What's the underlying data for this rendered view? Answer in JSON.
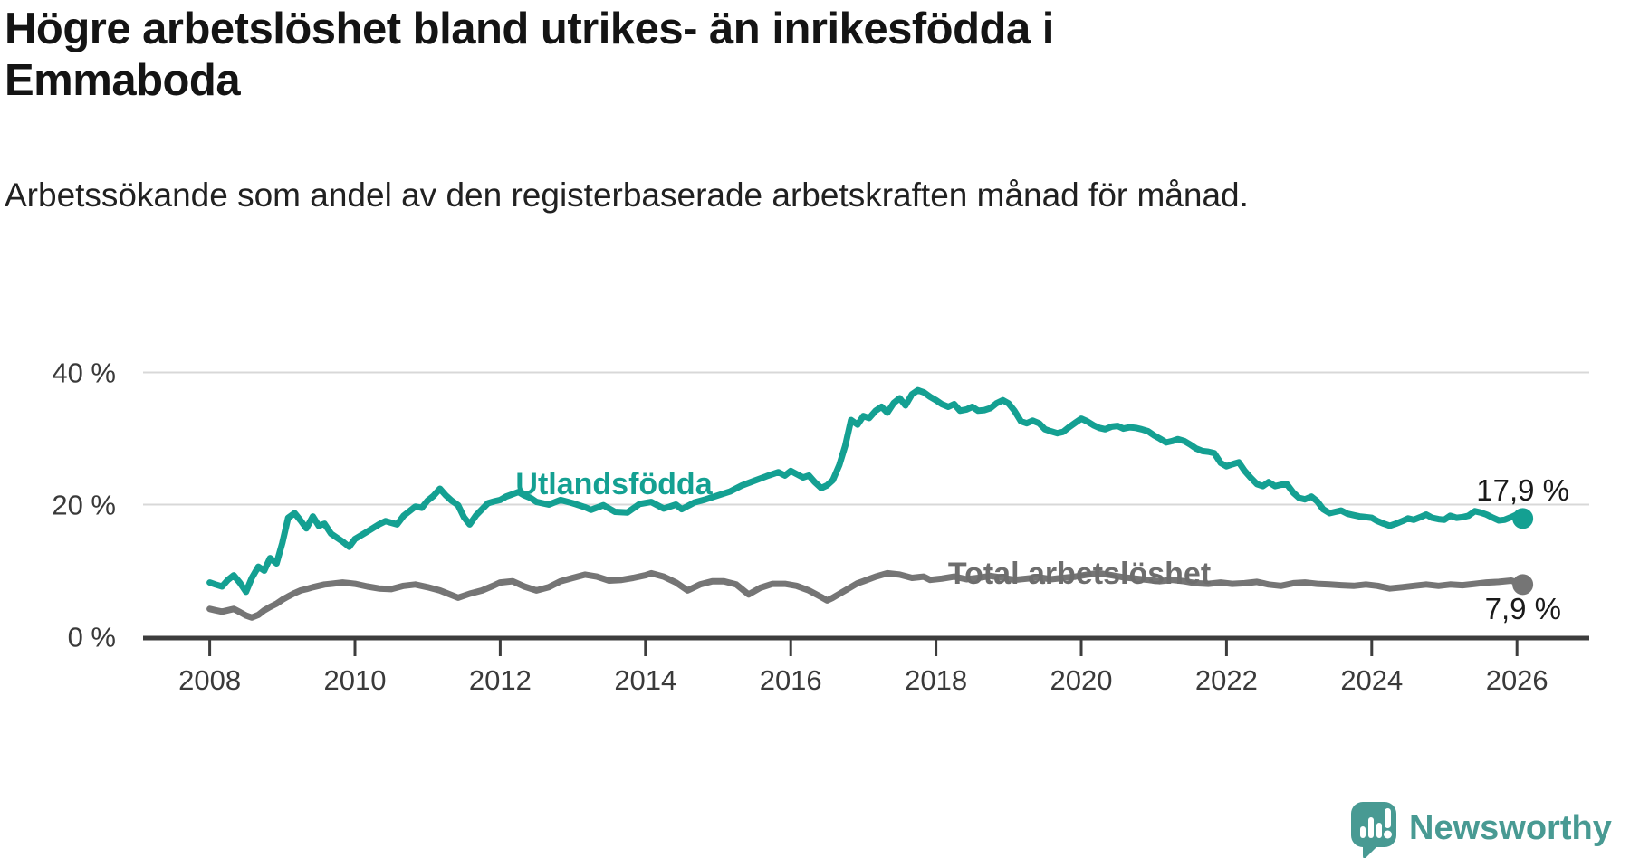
{
  "header": {
    "title_lines": [
      "Högre arbetslöshet bland utrikes- än inrikesfödda i",
      "Emmaboda"
    ],
    "subtitle": "Arbetssökande som andel av den registerbaserade arbetskraften månad för månad."
  },
  "colors": {
    "foreign_line": "#14a092",
    "total_line": "#757575",
    "total_label": "#6d6d6d",
    "grid": "#d8d8d8",
    "axis": "#3d3d3d",
    "tick_text": "#3a3a3a",
    "value_text": "#1a1a1a",
    "brand": "#489a93"
  },
  "branding": {
    "name": "Newsworthy",
    "logo_icon": "speech-bubble-bar-chart-exclamation"
  },
  "chart_data": {
    "type": "line",
    "title": "Högre arbetslöshet bland utrikes- än inrikesfödda i Emmaboda",
    "subtitle": "Arbetssökande som andel av den registerbaserade arbetskraften månad för månad.",
    "xlabel": "",
    "ylabel": "",
    "x_axis": {
      "ticks": [
        2008,
        2010,
        2012,
        2014,
        2016,
        2018,
        2020,
        2022,
        2024,
        2026
      ],
      "range": [
        2007.1,
        2027.0
      ]
    },
    "y_axis": {
      "ticks": [
        {
          "value": 0,
          "label": "0 %"
        },
        {
          "value": 20,
          "label": "20 %"
        },
        {
          "value": 40,
          "label": "40 %"
        }
      ],
      "range": [
        0,
        44
      ],
      "grid": true
    },
    "legend_position": "inline-labels",
    "series": [
      {
        "name": "Utlandsfödda",
        "end_label": "17,9 %",
        "end_value": 17.9,
        "x": [
          2008.0,
          2008.08,
          2008.17,
          2008.25,
          2008.33,
          2008.42,
          2008.5,
          2008.58,
          2008.67,
          2008.75,
          2008.83,
          2008.92,
          2009.0,
          2009.08,
          2009.17,
          2009.25,
          2009.33,
          2009.42,
          2009.5,
          2009.58,
          2009.67,
          2009.75,
          2009.83,
          2009.92,
          2010.0,
          2010.17,
          2010.33,
          2010.42,
          2010.58,
          2010.67,
          2010.83,
          2010.92,
          2011.0,
          2011.08,
          2011.17,
          2011.25,
          2011.33,
          2011.42,
          2011.5,
          2011.58,
          2011.67,
          2011.83,
          2011.92,
          2012.0,
          2012.08,
          2012.25,
          2012.33,
          2012.42,
          2012.5,
          2012.67,
          2012.83,
          2013.0,
          2013.17,
          2013.25,
          2013.42,
          2013.58,
          2013.75,
          2013.92,
          2014.08,
          2014.25,
          2014.42,
          2014.5,
          2014.67,
          2014.83,
          2015.0,
          2015.17,
          2015.33,
          2015.5,
          2015.67,
          2015.83,
          2015.92,
          2016.0,
          2016.17,
          2016.25,
          2016.33,
          2016.42,
          2016.5,
          2016.58,
          2016.67,
          2016.75,
          2016.83,
          2016.92,
          2017.0,
          2017.08,
          2017.17,
          2017.25,
          2017.33,
          2017.42,
          2017.5,
          2017.58,
          2017.67,
          2017.75,
          2017.83,
          2017.92,
          2018.0,
          2018.08,
          2018.17,
          2018.25,
          2018.33,
          2018.42,
          2018.5,
          2018.58,
          2018.67,
          2018.75,
          2018.83,
          2018.92,
          2019.0,
          2019.08,
          2019.17,
          2019.25,
          2019.33,
          2019.42,
          2019.5,
          2019.58,
          2019.67,
          2019.75,
          2019.83,
          2019.92,
          2020.0,
          2020.08,
          2020.17,
          2020.25,
          2020.33,
          2020.42,
          2020.5,
          2020.58,
          2020.67,
          2020.75,
          2020.83,
          2020.92,
          2021.0,
          2021.08,
          2021.17,
          2021.25,
          2021.33,
          2021.42,
          2021.5,
          2021.58,
          2021.67,
          2021.75,
          2021.83,
          2021.92,
          2022.0,
          2022.08,
          2022.17,
          2022.25,
          2022.33,
          2022.42,
          2022.5,
          2022.58,
          2022.67,
          2022.75,
          2022.83,
          2022.92,
          2023.0,
          2023.08,
          2023.17,
          2023.25,
          2023.33,
          2023.42,
          2023.5,
          2023.58,
          2023.67,
          2023.75,
          2023.83,
          2023.92,
          2024.0,
          2024.08,
          2024.17,
          2024.25,
          2024.33,
          2024.42,
          2024.5,
          2024.58,
          2024.67,
          2024.75,
          2024.83,
          2024.92,
          2025.0,
          2025.08,
          2025.17,
          2025.25,
          2025.33,
          2025.42,
          2025.5,
          2025.58,
          2025.67,
          2025.75,
          2025.83,
          2025.92,
          2026.0,
          2026.08
        ],
        "values": [
          8.2,
          7.9,
          7.6,
          8.6,
          9.3,
          8.1,
          6.8,
          8.9,
          10.6,
          10.0,
          11.9,
          11.1,
          14.2,
          18.0,
          18.7,
          17.6,
          16.4,
          18.2,
          16.8,
          17.1,
          15.6,
          15.0,
          14.4,
          13.6,
          14.8,
          15.9,
          17.0,
          17.5,
          17.0,
          18.3,
          19.7,
          19.5,
          20.6,
          21.3,
          22.4,
          21.4,
          20.6,
          19.9,
          18.1,
          17.0,
          18.4,
          20.2,
          20.5,
          20.7,
          21.2,
          21.9,
          21.4,
          21.0,
          20.4,
          20.0,
          20.7,
          20.2,
          19.6,
          19.2,
          19.9,
          18.9,
          18.8,
          20.1,
          20.4,
          19.4,
          20.0,
          19.3,
          20.3,
          20.8,
          21.4,
          22.0,
          22.9,
          23.6,
          24.3,
          24.9,
          24.4,
          25.1,
          24.1,
          24.4,
          23.4,
          22.5,
          22.9,
          23.7,
          26.0,
          28.9,
          32.8,
          32.1,
          33.4,
          33.1,
          34.2,
          34.8,
          33.9,
          35.4,
          36.1,
          35.0,
          36.7,
          37.3,
          37.0,
          36.3,
          35.8,
          35.2,
          34.8,
          35.2,
          34.2,
          34.4,
          34.8,
          34.2,
          34.3,
          34.6,
          35.3,
          35.8,
          35.3,
          34.2,
          32.6,
          32.3,
          32.7,
          32.3,
          31.4,
          31.1,
          30.8,
          31.0,
          31.7,
          32.4,
          33.0,
          32.6,
          32.0,
          31.6,
          31.4,
          31.8,
          31.9,
          31.5,
          31.7,
          31.6,
          31.4,
          31.1,
          30.5,
          30.0,
          29.4,
          29.6,
          29.9,
          29.6,
          29.1,
          28.5,
          28.1,
          28.0,
          27.8,
          26.3,
          25.8,
          26.1,
          26.4,
          25.1,
          24.1,
          23.1,
          22.8,
          23.4,
          22.8,
          23.0,
          23.1,
          21.8,
          21.0,
          20.8,
          21.2,
          20.5,
          19.3,
          18.7,
          18.9,
          19.1,
          18.6,
          18.4,
          18.2,
          18.1,
          18.0,
          17.5,
          17.1,
          16.8,
          17.1,
          17.5,
          17.9,
          17.7,
          18.1,
          18.5,
          18.0,
          17.8,
          17.7,
          18.3,
          18.0,
          18.1,
          18.3,
          19.0,
          18.8,
          18.5,
          18.0,
          17.6,
          17.7,
          18.1,
          18.5,
          17.9
        ]
      },
      {
        "name": "Total arbetslöshet",
        "end_label": "7,9 %",
        "end_value": 7.9,
        "x": [
          2008.0,
          2008.08,
          2008.17,
          2008.25,
          2008.33,
          2008.42,
          2008.5,
          2008.58,
          2008.67,
          2008.75,
          2008.83,
          2008.92,
          2009.0,
          2009.08,
          2009.17,
          2009.25,
          2009.33,
          2009.42,
          2009.5,
          2009.58,
          2009.67,
          2009.75,
          2009.83,
          2009.92,
          2010.0,
          2010.17,
          2010.33,
          2010.5,
          2010.67,
          2010.83,
          2011.0,
          2011.17,
          2011.33,
          2011.42,
          2011.58,
          2011.75,
          2011.92,
          2012.0,
          2012.17,
          2012.33,
          2012.5,
          2012.67,
          2012.83,
          2013.0,
          2013.17,
          2013.33,
          2013.5,
          2013.67,
          2013.83,
          2014.0,
          2014.08,
          2014.25,
          2014.42,
          2014.58,
          2014.75,
          2014.92,
          2015.08,
          2015.25,
          2015.42,
          2015.58,
          2015.75,
          2015.92,
          2016.08,
          2016.25,
          2016.42,
          2016.5,
          2016.58,
          2016.75,
          2016.92,
          2017.0,
          2017.17,
          2017.33,
          2017.5,
          2017.67,
          2017.83,
          2017.92,
          2018.08,
          2018.25,
          2018.42,
          2018.58,
          2018.75,
          2018.92,
          2019.08,
          2019.25,
          2019.42,
          2019.58,
          2019.75,
          2019.92,
          2020.08,
          2020.25,
          2020.42,
          2020.58,
          2020.75,
          2020.92,
          2021.08,
          2021.25,
          2021.42,
          2021.58,
          2021.75,
          2021.92,
          2022.08,
          2022.25,
          2022.42,
          2022.58,
          2022.75,
          2022.92,
          2023.08,
          2023.25,
          2023.42,
          2023.58,
          2023.75,
          2023.92,
          2024.08,
          2024.25,
          2024.42,
          2024.58,
          2024.75,
          2024.92,
          2025.08,
          2025.25,
          2025.42,
          2025.58,
          2025.75,
          2025.92,
          2026.08
        ],
        "values": [
          4.2,
          4.0,
          3.8,
          4.0,
          4.2,
          3.7,
          3.2,
          2.9,
          3.3,
          4.0,
          4.5,
          5.0,
          5.6,
          6.1,
          6.6,
          7.0,
          7.2,
          7.5,
          7.7,
          7.9,
          8.0,
          8.1,
          8.2,
          8.1,
          8.0,
          7.6,
          7.3,
          7.2,
          7.7,
          7.9,
          7.5,
          7.0,
          6.3,
          5.9,
          6.5,
          7.0,
          7.8,
          8.2,
          8.4,
          7.6,
          7.0,
          7.5,
          8.4,
          8.9,
          9.4,
          9.1,
          8.5,
          8.6,
          8.9,
          9.3,
          9.6,
          9.1,
          8.2,
          7.0,
          7.9,
          8.4,
          8.4,
          7.9,
          6.4,
          7.4,
          8.0,
          8.0,
          7.7,
          7.0,
          6.0,
          5.5,
          5.9,
          7.0,
          8.1,
          8.4,
          9.1,
          9.6,
          9.4,
          8.9,
          9.1,
          8.6,
          8.8,
          9.1,
          8.7,
          8.9,
          9.2,
          8.9,
          8.6,
          8.8,
          9.0,
          8.7,
          8.9,
          9.1,
          9.4,
          9.6,
          9.3,
          9.0,
          8.8,
          8.6,
          8.4,
          8.6,
          8.4,
          8.1,
          8.0,
          8.2,
          8.0,
          8.1,
          8.3,
          7.9,
          7.7,
          8.1,
          8.2,
          8.0,
          7.9,
          7.8,
          7.7,
          7.9,
          7.7,
          7.3,
          7.5,
          7.7,
          7.9,
          7.7,
          7.9,
          7.8,
          8.0,
          8.2,
          8.3,
          8.5,
          7.9
        ]
      }
    ]
  }
}
